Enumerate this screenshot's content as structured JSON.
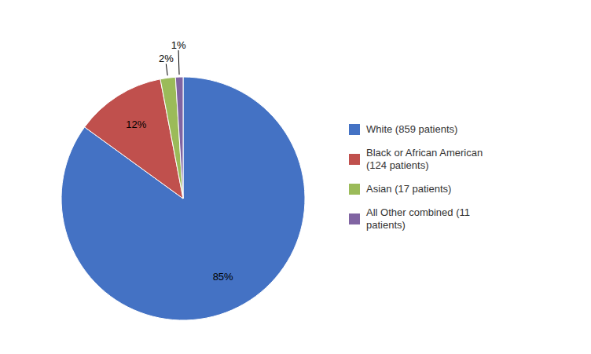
{
  "chart_data": {
    "type": "pie",
    "categories": [
      "White (859 patients)",
      "Black or African American\n(124 patients)",
      "Asian (17 patients)",
      "All Other combined (11\npatients)"
    ],
    "values": [
      85,
      12,
      2,
      1
    ],
    "value_labels": [
      "85%",
      "12%",
      "2%",
      "1%"
    ],
    "colors": [
      "#4472C4",
      "#C0504D",
      "#9BBB59",
      "#8064A2"
    ],
    "data_labels": true,
    "legend": "right"
  }
}
